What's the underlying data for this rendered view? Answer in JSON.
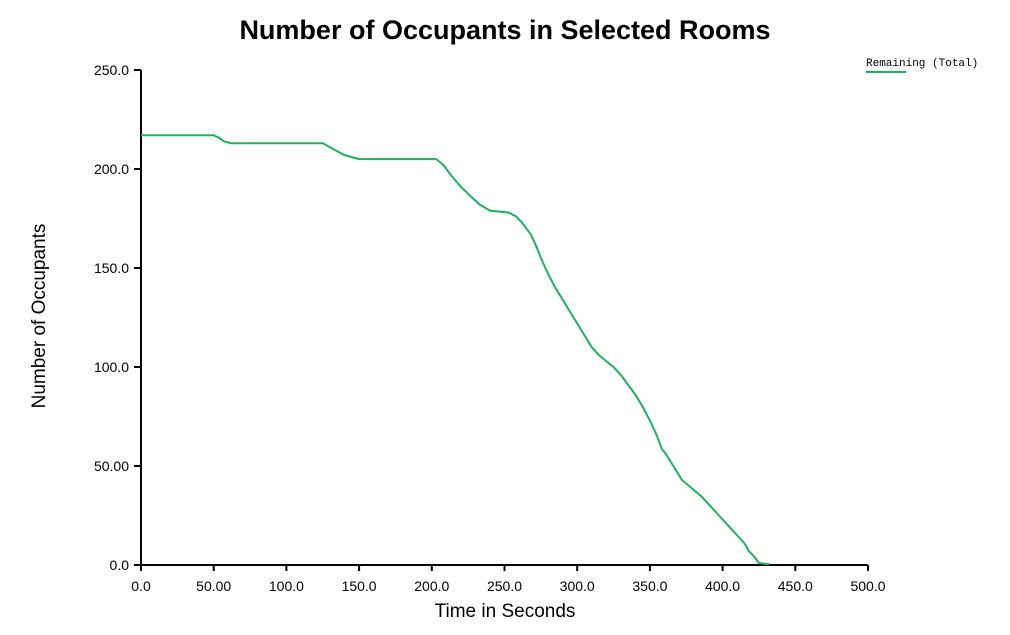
{
  "chart_data": {
    "type": "line",
    "title": "Number of Occupants in Selected Rooms",
    "xlabel": "Time in Seconds",
    "ylabel": "Number of Occupants",
    "xlim": [
      0,
      500
    ],
    "ylim": [
      0,
      250
    ],
    "x_ticks": [
      "0.0",
      "50.00",
      "100.0",
      "150.0",
      "200.0",
      "250.0",
      "300.0",
      "350.0",
      "400.0",
      "450.0",
      "500.0"
    ],
    "y_ticks": [
      "0.0",
      "50.00",
      "100.0",
      "150.0",
      "200.0",
      "250.0"
    ],
    "grid": false,
    "legend_position": "top-right",
    "series": [
      {
        "name": "Remaining (Total)",
        "color": "#1db35a",
        "x": [
          0,
          50,
          53,
          57,
          62,
          125,
          130,
          135,
          140,
          145,
          150,
          155,
          203,
          208,
          213,
          220,
          227,
          233,
          240,
          253,
          258,
          262,
          265,
          268,
          270,
          273,
          275,
          280,
          285,
          290,
          295,
          300,
          305,
          310,
          315,
          320,
          325,
          330,
          335,
          340,
          345,
          350,
          355,
          358,
          362,
          367,
          372,
          380,
          385,
          390,
          395,
          400,
          405,
          410,
          415,
          418,
          422,
          425,
          430,
          432
        ],
        "y": [
          217,
          217,
          216,
          214,
          213,
          213,
          211,
          209,
          207,
          206,
          205,
          205,
          205,
          202,
          197,
          191,
          186,
          182,
          179,
          178,
          176,
          173,
          170,
          167,
          164,
          159,
          155,
          147,
          140,
          134,
          128,
          122,
          116,
          110,
          106,
          103,
          100,
          96,
          91,
          86,
          80,
          73,
          65,
          59,
          55,
          49,
          43,
          38,
          35,
          31,
          27,
          23,
          19,
          15,
          11,
          7,
          4,
          1,
          0.5,
          0.5
        ]
      }
    ]
  }
}
